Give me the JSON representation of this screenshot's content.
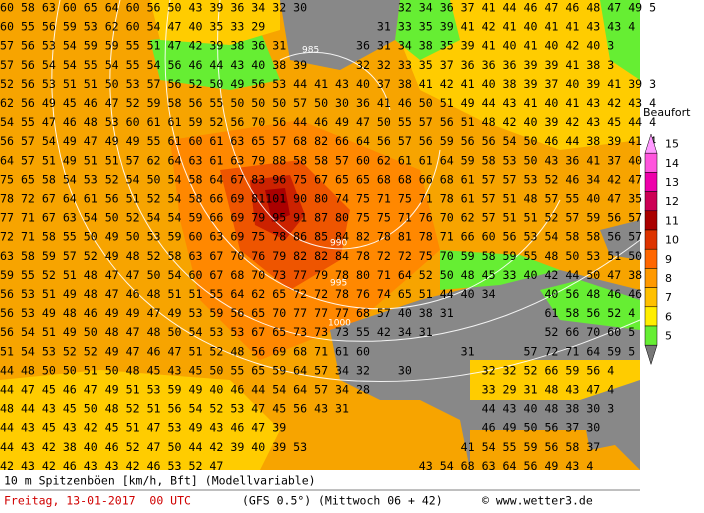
{
  "map": {
    "rows": [
      "60 58 63 60 65 64 60 56 50 43 39 36 34 32 30             32 34 36 37 41 44 46 47 46 48 47 49 5",
      "60 55 56 59 53 62 60 54 47 40 35 33 29                31 33 35 39 41 42 41 40 41 41 43 43 4",
      "57 56 53 54 59 59 55 51 47 42 39 38 36 31          36 31 34 38 35 39 41 40 41 40 42 40 3",
      "57 56 54 54 55 54 55 54 56 46 44 43 40 38 39       32 32 33 35 37 36 36 36 39 39 41 38 3",
      "52 56 53 51 51 50 53 57 56 52 50 49 56 53 44 41 43 40 37 38 41 42 41 40 38 39 37 40 39 41 39 3",
      "62 56 49 45 46 47 52 59 58 56 55 50 50 50 57 50 30 36 41 46 50 51 49 44 43 41 40 41 43 42 43 4",
      "54 55 47 46 48 53 60 61 61 59 52 56 70 56 44 46 49 47 50 55 57 56 51 48 42 40 39 42 43 45 44 4",
      "56 57 54 49 47 49 49 55 61 60 61 63 65 57 68 82 66 64 56 57 56 59 56 56 54 50 46 44 38 39 41 4",
      "64 57 51 49 51 51 57 62 64 63 61 63 79 88 58 58 57 60 62 61 61 64 59 58 53 50 43 36 41 37 40 4",
      "75 65 58 54 53 52 54 50 54 58 64 67 83 96 75 67 65 65 68 68 66 68 61 57 57 53 52 46 34 42 47 4",
      "78 72 67 64 61 56 51 52 54 58 66 69 81101 90 80 74 75 71 75 71 78 61 57 51 48 57 55 40 47 35 3",
      "77 71 67 63 54 50 52 54 54 59 66 69 79 95 91 87 80 75 75 71 76 70 62 57 51 51 52 57 59 56 57 4",
      "72 71 58 55 50 49 50 53 59 60 63 69 75 78 86 85 84 82 78 81 78 71 66 60 56 53 54 58 58 56 57 5",
      "63 58 59 57 52 49 48 52 58 63 67 70 76 79 82 82 84 78 72 72 75 70 59 58 59 55 48 50 53 51 50 4",
      "59 55 52 51 48 47 47 50 54 60 67 68 70 73 77 79 78 80 71 64 52 50 48 45 33 40 42 44 50 47 38",
      "56 53 51 49 48 47 46 48 51 51 55 64 62 65 72 72 78 76 74 65 51 44 40 34       40 56 48 46 46",
      "56 53 49 48 46 49 49 47 49 53 59 56 65 70 77 77 77 68 57 40 38 31             61 58 56 52 4",
      "56 54 51 49 50 48 47 48 50 54 53 53 67 65 73 73 73 55 42 34 31                52 66 70 60 5",
      "51 54 53 52 52 49 47 46 47 51 52 48 56 69 68 71 61 60             31       57 72 71 64 59 5",
      "44 48 50 50 51 50 48 45 43 45 50 55 65 59 64 57 34 32    30          32 32 52 66 59 56 4",
      "44 47 45 46 47 49 51 53 59 49 40 46 44 54 64 57 34 28                33 29 31 48 43 47 4",
      "48 44 43 45 50 48 52 51 56 54 52 53 47 45 56 43 31                   44 43 40 48 38 30 3",
      "44 43 45 43 42 45 51 47 53 49 43 46 47 39                            46 49 50 56 37 30",
      "44 43 42 38 40 46 52 47 50 44 42 39 40 39 53                      41 54 55 59 56 58 37",
      "42 43 42 46 43 43 42 46 53 52 47                            43 54 68 63 64 56 49 43 4"
    ],
    "isobars": [
      "985",
      "990",
      "995",
      "1000"
    ]
  },
  "legend": {
    "title": "Beaufort",
    "levels": [
      {
        "label": 15,
        "color": "#ff99ff"
      },
      {
        "label": 14,
        "color": "#ff55dd"
      },
      {
        "label": 13,
        "color": "#ee00aa"
      },
      {
        "label": 12,
        "color": "#cc0055"
      },
      {
        "label": 11,
        "color": "#aa0000"
      },
      {
        "label": 10,
        "color": "#dd3300"
      },
      {
        "label": 9,
        "color": "#ff6600"
      },
      {
        "label": 8,
        "color": "#ff9900"
      },
      {
        "label": 7,
        "color": "#ffc000"
      },
      {
        "label": 6,
        "color": "#ffee00"
      },
      {
        "label": 5,
        "color": "#66ee33"
      }
    ]
  },
  "footer": {
    "caption": "10 m Spitzenböen [km/h, Bft] (Modellvariable)",
    "date": "Freitag, 13-01-2017  00 UTC",
    "model": "(GFS 0.5°)",
    "run": "(Mittwoch 06 + 42)",
    "source": "© www.wetter3.de"
  }
}
